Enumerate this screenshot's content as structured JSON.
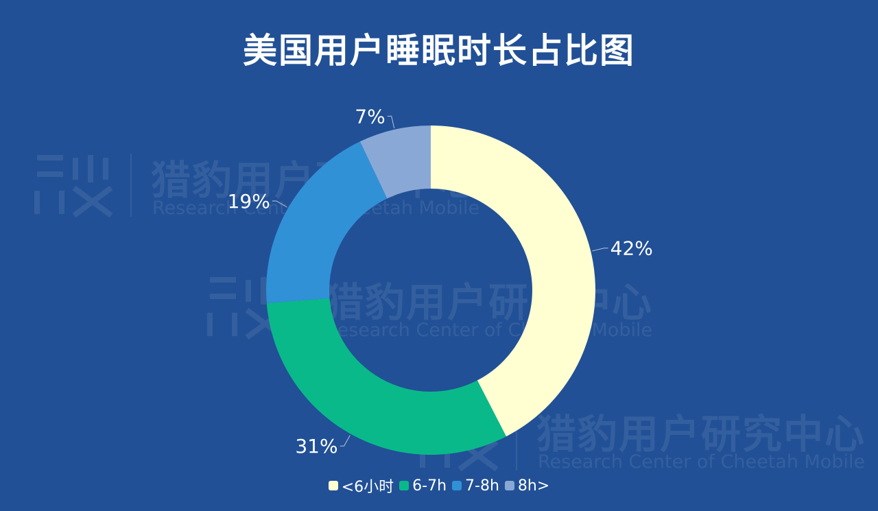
{
  "title": "美国用户睡眠时长占比图",
  "watermark": {
    "cn": "猎豹用户研究中心",
    "en": "Research Center of Cheetah Mobile"
  },
  "chart_data": {
    "type": "pie",
    "title": "美国用户睡眠时长占比图",
    "donut": true,
    "legend_position": "bottom",
    "categories": [
      "<6小时",
      "6-7h",
      "7-8h",
      "8h>"
    ],
    "values": [
      42,
      31,
      19,
      7
    ],
    "labels": [
      "42%",
      "31%",
      "19%",
      "7%"
    ],
    "colors": [
      "#FFFFD2",
      "#0AB98A",
      "#3191D6",
      "#8AA8D6"
    ]
  }
}
